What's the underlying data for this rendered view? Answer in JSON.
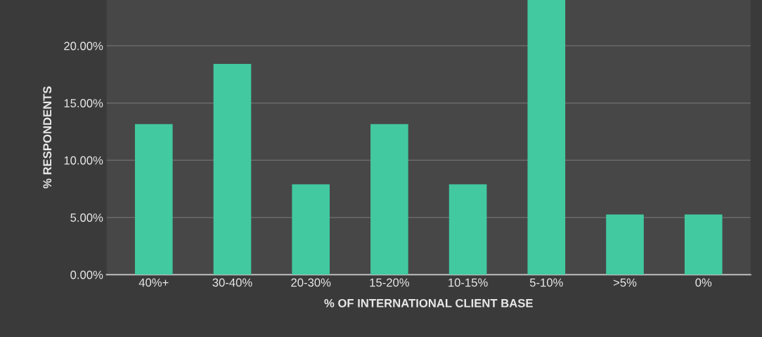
{
  "chart_data": {
    "type": "bar",
    "xlabel": "% OF INTERNATIONAL CLIENT BASE",
    "ylabel": "% RESPONDENTS",
    "categories": [
      "40%+",
      "30-40%",
      "20-30%",
      "15-20%",
      "10-15%",
      "5-10%",
      ">5%",
      "0%"
    ],
    "values": [
      13.16,
      18.42,
      7.89,
      13.16,
      7.89,
      24,
      5.26,
      5.26
    ],
    "color": "#42c9a0",
    "ylim": [
      0,
      24
    ],
    "yticks": [
      {
        "value": 0,
        "label": "0.00%"
      },
      {
        "value": 5,
        "label": "5.00%"
      },
      {
        "value": 10,
        "label": "10.00%"
      },
      {
        "value": 15,
        "label": "15.00%"
      },
      {
        "value": 20,
        "label": "20.00%"
      }
    ],
    "grid": "y"
  }
}
